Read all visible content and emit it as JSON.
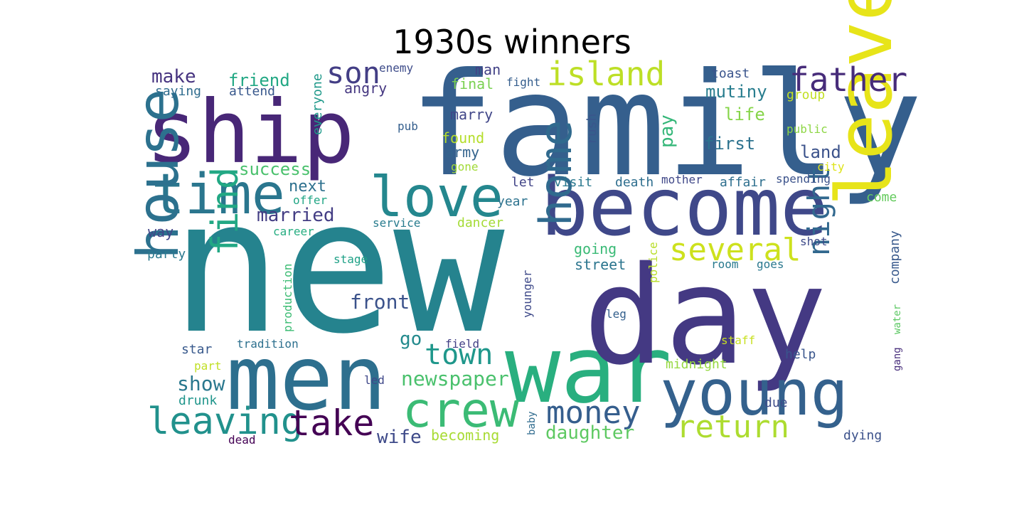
{
  "title": "1930s winners",
  "words": [
    {
      "text": "new",
      "color": "#25838e"
    },
    {
      "text": "family",
      "color": "#355f8d"
    },
    {
      "text": "ship",
      "color": "#482777"
    },
    {
      "text": "men",
      "color": "#2d6f8e"
    },
    {
      "text": "war",
      "color": "#29af7f"
    },
    {
      "text": "day",
      "color": "#443983"
    },
    {
      "text": "become",
      "color": "#3f4889"
    },
    {
      "text": "leave",
      "color": "#e7e419"
    },
    {
      "text": "young",
      "color": "#34618d"
    },
    {
      "text": "love",
      "color": "#24878e"
    },
    {
      "text": "time",
      "color": "#2a768e"
    },
    {
      "text": "crew",
      "color": "#3bbb75"
    },
    {
      "text": "house",
      "color": "#2c718e"
    },
    {
      "text": "island",
      "color": "#bddf26"
    },
    {
      "text": "father",
      "color": "#472c7a"
    },
    {
      "text": "home",
      "color": "#306a8e"
    },
    {
      "text": "money",
      "color": "#355e8d"
    },
    {
      "text": "leaving",
      "color": "#21918c"
    },
    {
      "text": "take",
      "color": "#440154"
    },
    {
      "text": "return",
      "color": "#addc30"
    },
    {
      "text": "find",
      "color": "#22a884"
    },
    {
      "text": "several",
      "color": "#cde11d"
    },
    {
      "text": "son",
      "color": "#433e85"
    },
    {
      "text": "night",
      "color": "#31688e"
    },
    {
      "text": "town",
      "color": "#1f978b"
    },
    {
      "text": "newspaper",
      "color": "#4ac16d"
    },
    {
      "text": "front",
      "color": "#3b528b"
    },
    {
      "text": "married",
      "color": "#433d84"
    },
    {
      "text": "daughter",
      "color": "#5ec962"
    },
    {
      "text": "wife",
      "color": "#3e4a89"
    },
    {
      "text": "show",
      "color": "#2a788e"
    },
    {
      "text": "go",
      "color": "#238a8d"
    },
    {
      "text": "make",
      "color": "#46337f"
    },
    {
      "text": "friend",
      "color": "#22a884"
    },
    {
      "text": "mutiny",
      "color": "#287d8e"
    },
    {
      "text": "life",
      "color": "#86d549"
    },
    {
      "text": "first",
      "color": "#2c728e"
    },
    {
      "text": "land",
      "color": "#3b528b"
    },
    {
      "text": "pay",
      "color": "#35b779"
    },
    {
      "text": "success",
      "color": "#4ac16d"
    },
    {
      "text": "next",
      "color": "#2d708e"
    },
    {
      "text": "army",
      "color": "#33638d"
    },
    {
      "text": "found",
      "color": "#b5de2b"
    },
    {
      "text": "marry",
      "color": "#404688"
    },
    {
      "text": "man",
      "color": "#424186"
    },
    {
      "text": "final",
      "color": "#7ad151"
    },
    {
      "text": "angry",
      "color": "#453781"
    },
    {
      "text": "saying",
      "color": "#2f6c8e"
    },
    {
      "text": "attend",
      "color": "#38588c"
    },
    {
      "text": "everyone",
      "color": "#1f998a"
    },
    {
      "text": "enemy",
      "color": "#3e4c8a"
    },
    {
      "text": "pub",
      "color": "#355f8d"
    },
    {
      "text": "fight",
      "color": "#355e8d"
    },
    {
      "text": "toast",
      "color": "#3a548c"
    },
    {
      "text": "group",
      "color": "#c2df23"
    },
    {
      "text": "public",
      "color": "#8ed645"
    },
    {
      "text": "rush",
      "color": "#39568c"
    },
    {
      "text": "gone",
      "color": "#a2da37"
    },
    {
      "text": "city",
      "color": "#dde318"
    },
    {
      "text": "spending",
      "color": "#3b528b"
    },
    {
      "text": "let",
      "color": "#414487"
    },
    {
      "text": "visit",
      "color": "#2a788e"
    },
    {
      "text": "death",
      "color": "#2e6e8e"
    },
    {
      "text": "mother",
      "color": "#3f4788"
    },
    {
      "text": "affair",
      "color": "#2e6f8e"
    },
    {
      "text": "offer",
      "color": "#21a685"
    },
    {
      "text": "year",
      "color": "#2c728e"
    },
    {
      "text": "come",
      "color": "#65cb5e"
    },
    {
      "text": "company",
      "color": "#38598c"
    },
    {
      "text": "way",
      "color": "#404588"
    },
    {
      "text": "career",
      "color": "#26ad81"
    },
    {
      "text": "service",
      "color": "#287c8e"
    },
    {
      "text": "dancer",
      "color": "#a5db36"
    },
    {
      "text": "party",
      "color": "#2a788e"
    },
    {
      "text": "production",
      "color": "#3dbc74"
    },
    {
      "text": "stage",
      "color": "#1fa187"
    },
    {
      "text": "going",
      "color": "#3aba76"
    },
    {
      "text": "street",
      "color": "#2b758e"
    },
    {
      "text": "police",
      "color": "#b8de29"
    },
    {
      "text": "shot",
      "color": "#3e4a89"
    },
    {
      "text": "room",
      "color": "#297a8e"
    },
    {
      "text": "goes",
      "color": "#2a788e"
    },
    {
      "text": "younger",
      "color": "#3e4989"
    },
    {
      "text": "leg",
      "color": "#34608d"
    },
    {
      "text": "tradition",
      "color": "#2d708e"
    },
    {
      "text": "star",
      "color": "#38598c"
    },
    {
      "text": "field",
      "color": "#424086"
    },
    {
      "text": "staff",
      "color": "#c8e020"
    },
    {
      "text": "gang",
      "color": "#472d7b"
    },
    {
      "text": "water",
      "color": "#5cc863"
    },
    {
      "text": "help",
      "color": "#39558c"
    },
    {
      "text": "part",
      "color": "#c0df25"
    },
    {
      "text": "midnight",
      "color": "#95d840"
    },
    {
      "text": "drunk",
      "color": "#1f958b"
    },
    {
      "text": "led",
      "color": "#3f4889"
    },
    {
      "text": "baby",
      "color": "#2f6b8e"
    },
    {
      "text": "due",
      "color": "#3e4c8a"
    },
    {
      "text": "dead",
      "color": "#440154"
    },
    {
      "text": "becoming",
      "color": "#a8db34"
    },
    {
      "text": "dying",
      "color": "#3b518b"
    }
  ]
}
